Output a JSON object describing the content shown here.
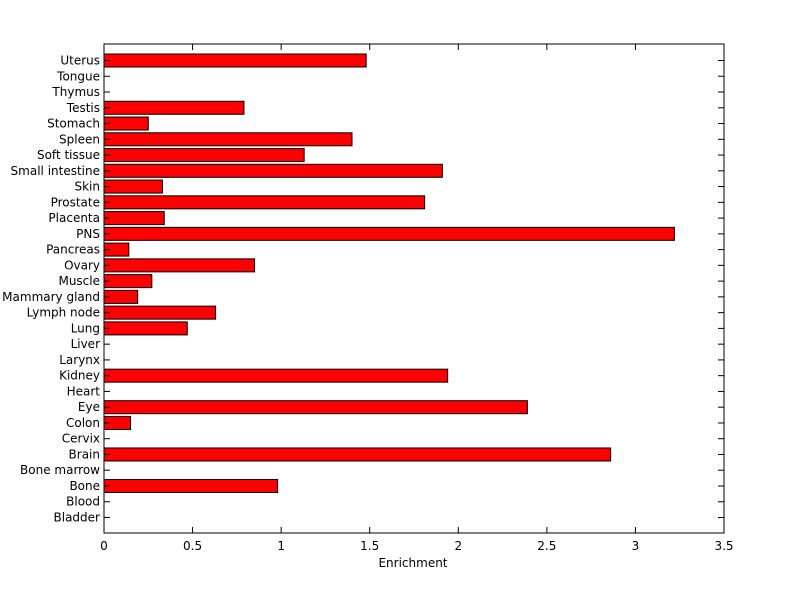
{
  "chart_data": {
    "type": "bar",
    "orientation": "horizontal",
    "title": "",
    "xlabel": "Enrichment",
    "ylabel": "",
    "xlim": [
      0,
      3.5
    ],
    "x_ticks": [
      "0",
      "0.5",
      "1",
      "1.5",
      "2",
      "2.5",
      "3",
      "3.5"
    ],
    "bar_color": "#ff0000",
    "grid": false,
    "categories": [
      "Uterus",
      "Tongue",
      "Thymus",
      "Testis",
      "Stomach",
      "Spleen",
      "Soft tissue",
      "Small intestine",
      "Skin",
      "Prostate",
      "Placenta",
      "PNS",
      "Pancreas",
      "Ovary",
      "Muscle",
      "Mammary gland",
      "Lymph node",
      "Lung",
      "Liver",
      "Larynx",
      "Kidney",
      "Heart",
      "Eye",
      "Colon",
      "Cervix",
      "Brain",
      "Bone marrow",
      "Bone",
      "Blood",
      "Bladder"
    ],
    "values": [
      1.48,
      0,
      0,
      0.79,
      0.25,
      1.4,
      1.13,
      1.91,
      0.33,
      1.81,
      0.34,
      3.22,
      0.14,
      0.85,
      0.27,
      0.19,
      0.63,
      0.47,
      0,
      0,
      1.94,
      0,
      2.39,
      0.15,
      0,
      2.86,
      0,
      0.98,
      0,
      0
    ]
  }
}
